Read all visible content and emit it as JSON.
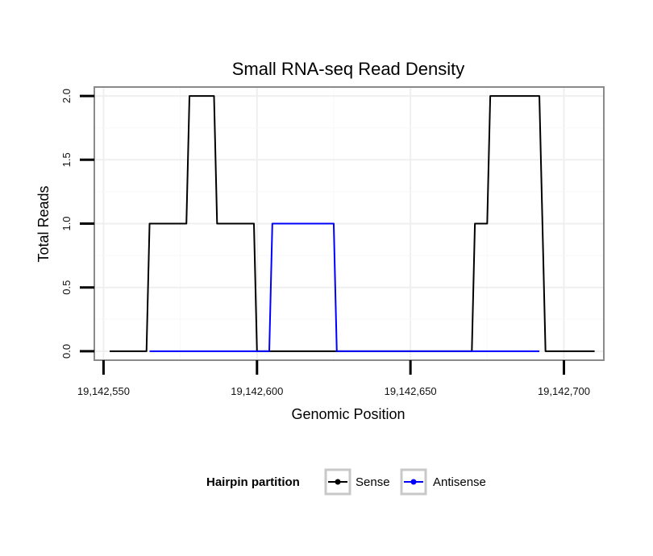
{
  "chart_data": {
    "type": "line",
    "title": "Small RNA-seq Read Density",
    "xlabel": "Genomic Position",
    "ylabel": "Total Reads",
    "xlim": [
      19142547,
      19142713
    ],
    "ylim": [
      -0.07,
      2.07
    ],
    "x_ticks": [
      19142550,
      19142600,
      19142650,
      19142700
    ],
    "x_tick_labels": [
      "19,142,550",
      "19,142,600",
      "19,142,650",
      "19,142,700"
    ],
    "y_ticks": [
      0,
      0.5,
      1,
      1.5,
      2
    ],
    "y_tick_labels": [
      "0.0",
      "0.5",
      "1.0",
      "1.5",
      "2.0"
    ],
    "legend": {
      "title": "Hairpin partition",
      "position": "bottom"
    },
    "series": [
      {
        "name": "Sense",
        "color": "#000000",
        "points": [
          [
            19142552,
            0
          ],
          [
            19142564,
            0
          ],
          [
            19142565,
            1
          ],
          [
            19142577,
            1
          ],
          [
            19142578,
            2
          ],
          [
            19142586,
            2
          ],
          [
            19142587,
            1
          ],
          [
            19142599,
            1
          ],
          [
            19142600,
            0
          ],
          [
            19142670,
            0
          ],
          [
            19142671,
            1
          ],
          [
            19142675,
            1
          ],
          [
            19142676,
            2
          ],
          [
            19142692,
            2
          ],
          [
            19142693,
            1
          ],
          [
            19142694,
            0
          ],
          [
            19142710,
            0
          ]
        ]
      },
      {
        "name": "Antisense",
        "color": "#0000ff",
        "points": [
          [
            19142565,
            0
          ],
          [
            19142604,
            0
          ],
          [
            19142605,
            1
          ],
          [
            19142625,
            1
          ],
          [
            19142626,
            0
          ],
          [
            19142671,
            0
          ],
          [
            19142676,
            0
          ],
          [
            19142692,
            0
          ]
        ]
      }
    ]
  }
}
